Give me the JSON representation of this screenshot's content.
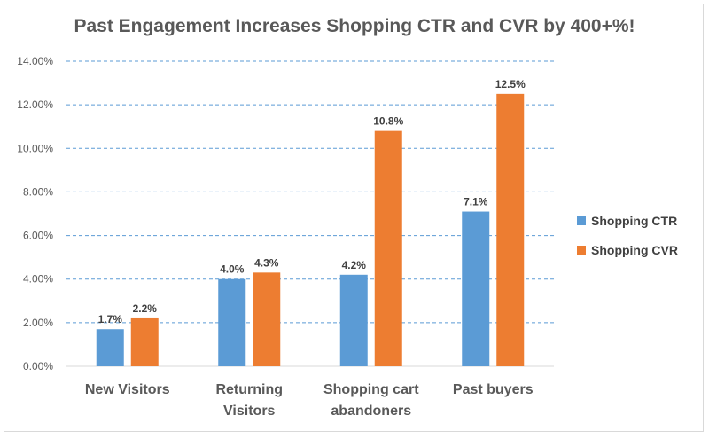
{
  "chart_data": {
    "type": "bar",
    "title": "Past Engagement Increases Shopping CTR and CVR by 400+%!",
    "categories": [
      [
        "New Visitors"
      ],
      [
        "Returning",
        "Visitors"
      ],
      [
        "Shopping cart",
        "abandoners"
      ],
      [
        "Past buyers"
      ]
    ],
    "series": [
      {
        "name": "Shopping CTR",
        "color": "#5b9bd5",
        "values": [
          1.7,
          4.0,
          4.2,
          7.1
        ],
        "labels": [
          "1.7%",
          "4.0%",
          "4.2%",
          "7.1%"
        ]
      },
      {
        "name": "Shopping CVR",
        "color": "#ed7d31",
        "values": [
          2.2,
          4.3,
          10.8,
          12.5
        ],
        "labels": [
          "2.2%",
          "4.3%",
          "10.8%",
          "12.5%"
        ]
      }
    ],
    "ylim": [
      0,
      14
    ],
    "yticks": [
      "0.00%",
      "2.00%",
      "4.00%",
      "6.00%",
      "8.00%",
      "10.00%",
      "12.00%",
      "14.00%"
    ],
    "grid": true,
    "gridline_color": "#5b9bd5",
    "legend": "right",
    "xlabel": "",
    "ylabel": ""
  }
}
